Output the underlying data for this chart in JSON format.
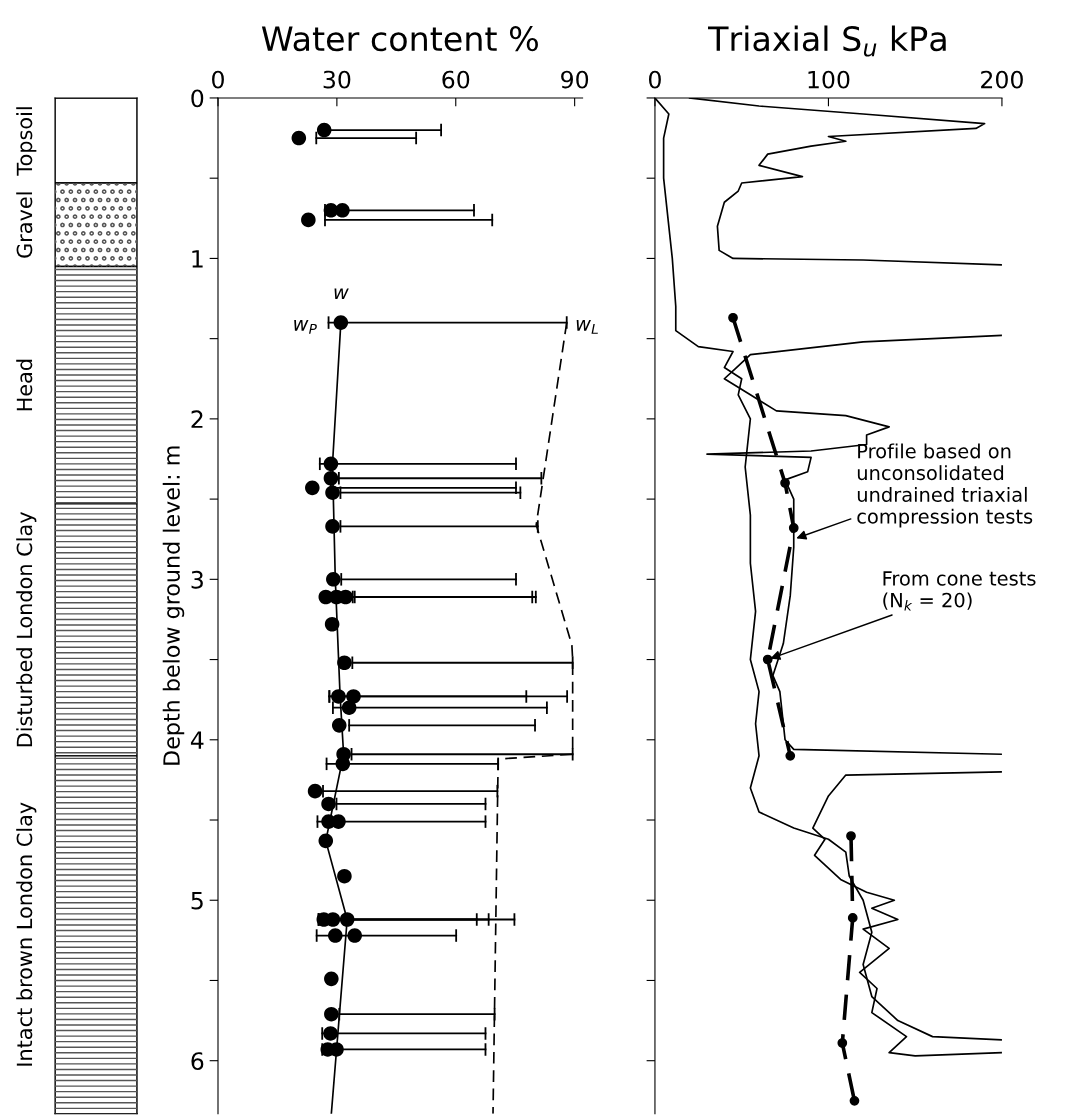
{
  "chart_data": [
    {
      "type": "bar",
      "stacked": true,
      "categories": [
        null
      ],
      "ylim": [
        6.33,
        0
      ],
      "yticks": [
        0,
        1,
        2,
        3,
        4,
        5,
        6
      ],
      "tick_labels": false,
      "series": [
        {
          "name": "Topsoil",
          "color": "#ffffff",
          "values": [
            0.53
          ]
        },
        {
          "name": "Gravel",
          "color": "#ffffff",
          "values": [
            0.52
          ]
        },
        {
          "name": "Head",
          "color": "#ffffff",
          "values": [
            1.48
          ]
        },
        {
          "name": "Disturbed London Clay",
          "color": "#ffffff",
          "values": [
            1.57
          ]
        },
        {
          "name": "Intact brown London Clay",
          "color": "#ffffff",
          "values": [
            2.23
          ]
        }
      ]
    },
    {
      "type": "scatter",
      "title": "Water content %",
      "ylabel": "Depth below ground level: m",
      "xlim": [
        0,
        92
      ],
      "xticks": [
        0,
        30,
        60,
        90
      ],
      "ylim": [
        6.33,
        0
      ],
      "yticks": [
        0,
        {
          "value": 0.5,
          "label": null
        },
        1,
        {
          "value": 1.5,
          "label": null
        },
        2,
        {
          "value": 2.5,
          "label": null
        },
        3,
        {
          "value": 3.5,
          "label": null
        },
        4,
        {
          "value": 4.5,
          "label": null
        },
        5,
        {
          "value": 5.5,
          "label": null
        },
        6
      ],
      "series": [
        {
          "type": "scatter",
          "marker": "circle",
          "color": "#000000",
          "x": [
            26.8,
            20.4,
            28.5,
            31.4,
            22.8,
            31,
            28.5,
            28.5,
            23.8,
            28.9,
            28.9,
            29.1,
            27.2,
            29.9,
            32.2,
            28.8,
            31.9,
            30.4,
            34.2,
            33.1,
            30.6,
            31.7,
            31.5,
            24.5,
            27.9,
            27.9,
            30.4,
            27.2,
            31.9,
            26.7,
            29,
            32.6,
            29.6,
            34.5,
            28.6,
            28.6,
            28.4,
            27.7,
            29.9
          ],
          "values": [
            0.2,
            0.25,
            0.7,
            0.7,
            0.76,
            1.4,
            2.28,
            2.37,
            2.43,
            2.46,
            2.67,
            3.0,
            3.11,
            3.11,
            3.11,
            3.28,
            3.52,
            3.73,
            3.73,
            3.8,
            3.91,
            4.09,
            4.15,
            4.32,
            4.4,
            4.51,
            4.51,
            4.63,
            4.85,
            5.12,
            5.12,
            5.12,
            5.22,
            5.22,
            5.49,
            5.71,
            5.83,
            5.93,
            5.93
          ],
          "xerrors": [
            [
              27,
              56.3
            ],
            [
              24.8,
              50
            ],
            [
              27,
              64.6
            ],
            null,
            [
              27,
              69.2
            ],
            [
              27.9,
              88
            ],
            [
              25.7,
              75.2
            ],
            [
              30.5,
              81.6
            ],
            [
              28.5,
              75.2
            ],
            [
              30.9,
              76.3
            ],
            [
              30.9,
              80.7
            ],
            [
              31.1,
              75.2
            ],
            null,
            [
              34,
              79.3
            ],
            [
              34.5,
              80.2
            ],
            null,
            [
              33.9,
              89.5
            ],
            [
              28.1,
              77.8
            ],
            [
              28.1,
              88.1
            ],
            [
              29,
              83
            ],
            [
              33.1,
              80
            ],
            [
              33.7,
              89.5
            ],
            [
              27.4,
              70.7
            ],
            [
              26.5,
              70.5
            ],
            [
              29.9,
              67.5
            ],
            [
              25.1,
              67.5
            ],
            null,
            null,
            null,
            [
              25.4,
              65.3
            ],
            [
              25.4,
              68.3
            ],
            [
              25.4,
              74.8
            ],
            [
              24.9,
              60.1
            ],
            null,
            null,
            [
              30.6,
              69.8
            ],
            [
              26.3,
              67.5
            ],
            [
              26.3,
              67.5
            ],
            null
          ]
        },
        {
          "type": "line",
          "color": "#000000",
          "line_style": "solid",
          "x": [
            31,
            28.9,
            29.6,
            30.8,
            31.7,
            27.2,
            32.6,
            28.6
          ],
          "values": [
            1.4,
            2.28,
            3.0,
            3.72,
            4.09,
            4.63,
            5.12,
            6.33
          ]
        },
        {
          "type": "line",
          "color": "#000000",
          "line_style": "dashed",
          "x": [
            88,
            80.3,
            89.3,
            89.5,
            89.5,
            70.7,
            69.4
          ],
          "values": [
            1.4,
            2.66,
            3.41,
            3.5,
            4.09,
            4.12,
            6.33
          ]
        }
      ],
      "annotations": [
        {
          "text": "w",
          "x": 31,
          "y": 1.4
        },
        {
          "text": "w$_{P}$",
          "x": 27.9,
          "y": 1.4
        },
        {
          "text": "w$_{L}$",
          "x": 88,
          "y": 1.4
        }
      ]
    },
    {
      "type": "line",
      "title": "Triaxial S$_{u}$ kPa",
      "xlim": [
        0,
        200
      ],
      "xticks": [
        0,
        100,
        200
      ],
      "ylim": [
        6.33,
        0
      ],
      "yticks": [
        0,
        0.5,
        1,
        1.5,
        2,
        2.5,
        3,
        3.5,
        4,
        4.5,
        5,
        5.5,
        6
      ],
      "tick_labels": "x",
      "series": [
        {
          "color": "#000000",
          "line_style": "solid",
          "x": [
            20,
            60,
            120,
            190,
            185,
            100,
            110,
            90,
            65,
            60,
            85,
            50,
            48,
            40,
            36,
            37,
            45,
            120,
            200,
            null,
            200,
            120,
            55,
            47,
            40,
            55,
            70,
            110,
            135,
            122,
            122,
            90,
            30,
            90,
            88,
            75,
            80,
            80,
            78,
            74,
            68,
            72,
            75,
            80,
            200,
            null,
            200,
            110,
            100,
            91,
            98,
            92,
            107,
            122,
            138,
            125,
            140,
            120,
            135,
            118,
            128,
            125,
            145,
            135,
            150,
            200
          ],
          "values": [
            0,
            0.05,
            0.1,
            0.16,
            0.19,
            0.24,
            0.27,
            0.3,
            0.35,
            0.42,
            0.49,
            0.53,
            0.58,
            0.65,
            0.8,
            0.95,
            1.0,
            1.01,
            1.04,
            null,
            1.48,
            1.52,
            1.6,
            1.68,
            1.75,
            1.85,
            1.95,
            1.98,
            2.05,
            2.1,
            2.16,
            2.2,
            2.22,
            2.24,
            2.33,
            2.38,
            2.5,
            2.8,
            3.1,
            3.4,
            3.6,
            3.7,
            4.0,
            4.06,
            4.09,
            null,
            4.2,
            4.22,
            4.35,
            4.55,
            4.62,
            4.72,
            4.87,
            4.95,
            5.0,
            5.05,
            5.12,
            5.18,
            5.3,
            5.45,
            5.55,
            5.7,
            5.85,
            5.95,
            5.97,
            5.95
          ]
        },
        {
          "color": "#000000",
          "line_style": "solid",
          "x": [
            0,
            8,
            5,
            5,
            8,
            10,
            12,
            12,
            25,
            45,
            40,
            50,
            48,
            55,
            52,
            55,
            55,
            58,
            55,
            60,
            58,
            60,
            55,
            60,
            80,
            100,
            110,
            112,
            120,
            125,
            120,
            125,
            140,
            160,
            200
          ],
          "values": [
            0,
            0.1,
            0.25,
            0.5,
            0.8,
            1.0,
            1.3,
            1.45,
            1.55,
            1.58,
            1.68,
            1.75,
            1.85,
            2.0,
            2.3,
            2.6,
            2.9,
            3.2,
            3.5,
            3.7,
            3.9,
            4.1,
            4.3,
            4.45,
            4.55,
            4.62,
            4.7,
            4.85,
            5.0,
            5.2,
            5.4,
            5.6,
            5.75,
            5.85,
            5.87
          ]
        },
        {
          "color": "#000000",
          "line_style": "dashed",
          "marker": "circle",
          "x": [
            45,
            75,
            80,
            65,
            78,
            null,
            113,
            114,
            108,
            115
          ],
          "values": [
            1.37,
            2.4,
            2.68,
            3.5,
            4.1,
            null,
            4.6,
            5.11,
            5.89,
            6.25
          ]
        }
      ],
      "annotations": [
        {
          "text": "Profile based on\nunconsolidated\nundrained triaxial\ncompression tests",
          "x": 80,
          "y": 2.75
        },
        {
          "text": "From cone tests\n(N$_{k}$ = 20)",
          "x": 65,
          "y": 3.5
        }
      ]
    }
  ]
}
